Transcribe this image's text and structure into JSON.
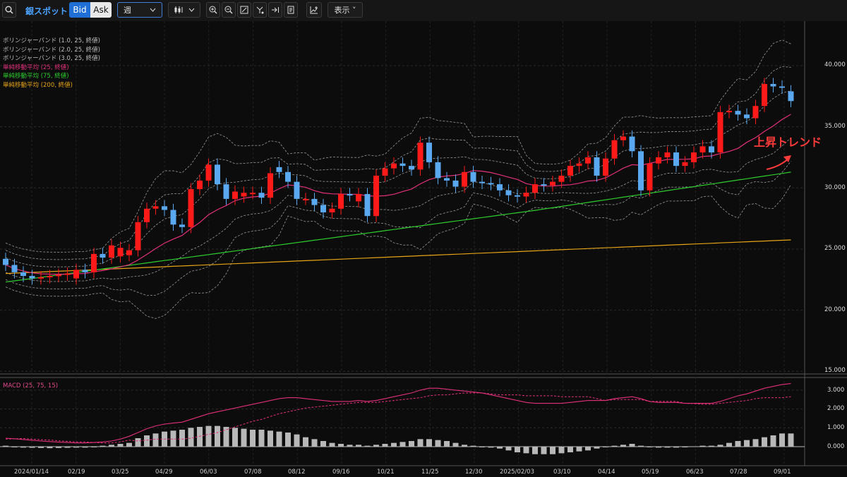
{
  "toolbar": {
    "symbol": "銀スポット",
    "bid_label": "Bid",
    "ask_label": "Ask",
    "period_value": "週",
    "display_label": "表示 ˅"
  },
  "legend": [
    {
      "text": "ボリンジャーバンド (1.0, 25, 終値)",
      "color": "#bdbdbd"
    },
    {
      "text": "ボリンジャーバンド (2.0, 25, 終値)",
      "color": "#bdbdbd"
    },
    {
      "text": "ボリンジャーバンド (3.0, 25, 終値)",
      "color": "#bdbdbd"
    },
    {
      "text": "単純移動平均 (25, 終値)",
      "color": "#e0307a"
    },
    {
      "text": "単純移動平均 (75, 終値)",
      "color": "#2ecc2e"
    },
    {
      "text": "単純移動平均 (200, 終値)",
      "color": "#e6a417"
    }
  ],
  "macd_label": "MACD (25, 75, 15)",
  "annotation": "上昇トレンド",
  "colors": {
    "up": "#ff1a1a",
    "down": "#5aa8f0",
    "ma25": "#e0307a",
    "ma75": "#2ecc2e",
    "ma200": "#e6a417",
    "band": "#8a8a8a",
    "macd": "#e0307a",
    "hist": "#b8b8b8"
  },
  "price_axis": [
    "40.000",
    "35.000",
    "30.000",
    "25.000",
    "20.000",
    "15.000"
  ],
  "macd_axis": [
    "3.000",
    "2.000",
    "1.000",
    "0.000"
  ],
  "x_axis": [
    "2024/01/14",
    "02/19",
    "03/25",
    "04/29",
    "06/03",
    "07/08",
    "08/12",
    "09/16",
    "10/21",
    "11/25",
    "12/30",
    "2025/02/03",
    "03/10",
    "04/14",
    "05/19",
    "06/23",
    "07/28",
    "09/01"
  ],
  "chart_data": {
    "type": "candlestick",
    "ylim": [
      15,
      42
    ],
    "closes": [
      23.7,
      23.1,
      22.8,
      22.6,
      22.7,
      22.8,
      22.9,
      23.0,
      23.3,
      23.1,
      24.6,
      24.3,
      25.3,
      25.1,
      24.9,
      27.2,
      28.3,
      28.5,
      28.2,
      27.0,
      26.8,
      29.9,
      30.6,
      31.9,
      30.3,
      29.1,
      29.7,
      29.6,
      29.6,
      29.2,
      31.2,
      31.3,
      30.5,
      29.1,
      29.1,
      28.6,
      28.0,
      28.3,
      29.5,
      29.4,
      29.5,
      27.7,
      31.0,
      31.6,
      32.0,
      31.8,
      31.5,
      33.7,
      32.1,
      30.8,
      30.6,
      30.1,
      31.3,
      30.5,
      30.4,
      30.3,
      29.8,
      29.4,
      29.3,
      29.6,
      30.3,
      30.2,
      30.5,
      31.0,
      31.8,
      32.0,
      32.5,
      31.0,
      32.4,
      33.9,
      34.2,
      33.0,
      29.8,
      32.0,
      32.5,
      32.9,
      31.8,
      32.1,
      32.9,
      33.4,
      32.9,
      36.2,
      36.3,
      36.0,
      35.7,
      36.7,
      38.5,
      38.3,
      38.2,
      37.1
    ],
    "opens": [
      24.2,
      23.7,
      23.1,
      22.8,
      22.6,
      22.7,
      22.8,
      22.9,
      22.6,
      23.3,
      23.1,
      24.6,
      24.3,
      24.4,
      24.5,
      24.9,
      27.2,
      28.3,
      28.5,
      28.2,
      27.0,
      26.8,
      29.9,
      30.6,
      31.9,
      30.3,
      29.1,
      29.3,
      29.6,
      29.6,
      29.2,
      31.7,
      31.3,
      30.5,
      29.1,
      29.1,
      28.6,
      28.0,
      28.3,
      29.5,
      28.9,
      29.5,
      27.7,
      31.0,
      31.6,
      32.0,
      31.8,
      31.5,
      33.7,
      32.1,
      30.8,
      30.6,
      30.1,
      31.3,
      30.5,
      30.4,
      30.3,
      29.8,
      29.4,
      29.3,
      29.6,
      30.3,
      30.2,
      30.5,
      31.0,
      31.8,
      32.0,
      32.5,
      31.0,
      32.4,
      33.9,
      34.2,
      33.0,
      29.8,
      32.0,
      32.5,
      32.9,
      31.8,
      32.1,
      32.9,
      33.4,
      32.9,
      36.2,
      36.3,
      36.0,
      35.7,
      36.7,
      38.5,
      38.3,
      37.9
    ],
    "macd_hist": [
      0.05,
      0.0,
      -0.05,
      -0.06,
      -0.07,
      -0.08,
      -0.07,
      -0.06,
      -0.05,
      -0.05,
      0.0,
      0.05,
      0.1,
      0.15,
      0.2,
      0.45,
      0.6,
      0.7,
      0.8,
      0.85,
      0.9,
      1.0,
      1.05,
      1.1,
      1.1,
      1.05,
      1.0,
      0.95,
      0.9,
      0.9,
      0.85,
      0.8,
      0.75,
      0.65,
      0.5,
      0.4,
      0.3,
      0.2,
      0.15,
      0.1,
      0.1,
      0.05,
      0.1,
      0.15,
      0.2,
      0.25,
      0.3,
      0.4,
      0.4,
      0.35,
      0.3,
      0.2,
      0.1,
      0.05,
      0.0,
      -0.05,
      -0.1,
      -0.2,
      -0.3,
      -0.35,
      -0.4,
      -0.4,
      -0.4,
      -0.35,
      -0.3,
      -0.25,
      -0.2,
      -0.1,
      0.0,
      0.05,
      0.1,
      0.15,
      0.05,
      0.0,
      -0.05,
      -0.05,
      -0.05,
      0.0,
      0.02,
      0.05,
      0.05,
      0.1,
      0.2,
      0.3,
      0.35,
      0.4,
      0.5,
      0.6,
      0.7,
      0.7
    ],
    "macd_line": [
      0.45,
      0.42,
      0.38,
      0.34,
      0.3,
      0.27,
      0.24,
      0.22,
      0.2,
      0.2,
      0.22,
      0.25,
      0.3,
      0.4,
      0.55,
      0.75,
      0.95,
      1.1,
      1.2,
      1.25,
      1.3,
      1.45,
      1.6,
      1.75,
      1.85,
      1.95,
      2.05,
      2.15,
      2.25,
      2.35,
      2.45,
      2.55,
      2.6,
      2.6,
      2.55,
      2.5,
      2.45,
      2.4,
      2.4,
      2.4,
      2.45,
      2.4,
      2.45,
      2.55,
      2.65,
      2.75,
      2.85,
      3.0,
      3.1,
      3.1,
      3.05,
      3.0,
      2.95,
      2.9,
      2.85,
      2.75,
      2.65,
      2.55,
      2.45,
      2.35,
      2.3,
      2.3,
      2.3,
      2.3,
      2.35,
      2.4,
      2.45,
      2.45,
      2.45,
      2.55,
      2.6,
      2.65,
      2.55,
      2.4,
      2.35,
      2.35,
      2.35,
      2.3,
      2.3,
      2.3,
      2.3,
      2.4,
      2.55,
      2.7,
      2.8,
      2.95,
      3.1,
      3.2,
      3.3,
      3.35
    ]
  }
}
